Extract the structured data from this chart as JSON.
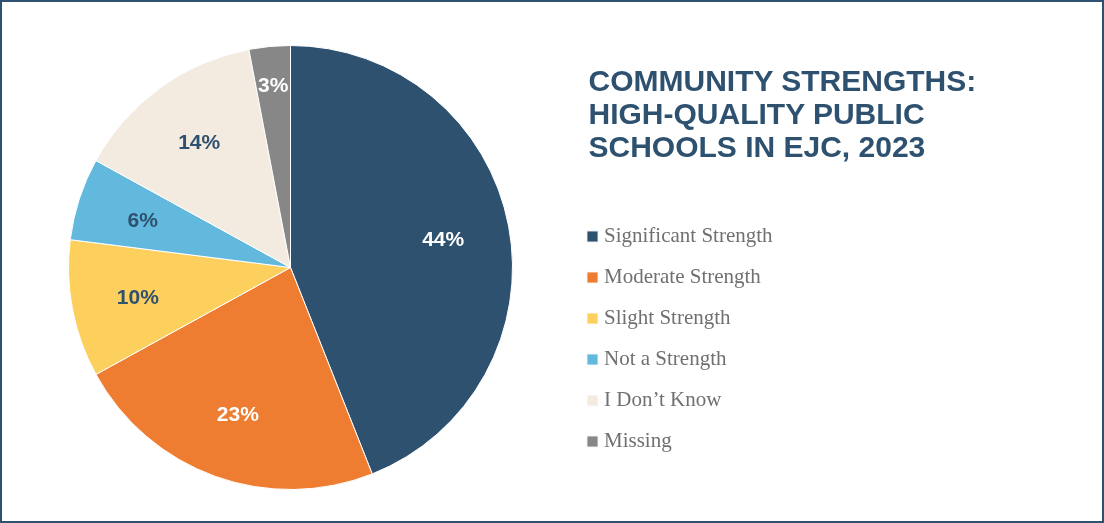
{
  "chart_data": {
    "type": "pie",
    "title": "COMMUNITY STRENGTHS: HIGH-QUALITY PUBLIC SCHOOLS IN EJC, 2023",
    "categories": [
      "Significant Strength",
      "Moderate Strength",
      "Slight Strength",
      "Not a Strength",
      "I Don’t Know",
      "Missing"
    ],
    "values": [
      44,
      23,
      10,
      6,
      14,
      3
    ],
    "colors": [
      "#2e5170",
      "#ee7d31",
      "#fdd05e",
      "#63b8de",
      "#f3ebe0",
      "#878787"
    ],
    "value_labels": [
      "44%",
      "23%",
      "10%",
      "6%",
      "14%",
      "3%"
    ],
    "legend": "right"
  }
}
